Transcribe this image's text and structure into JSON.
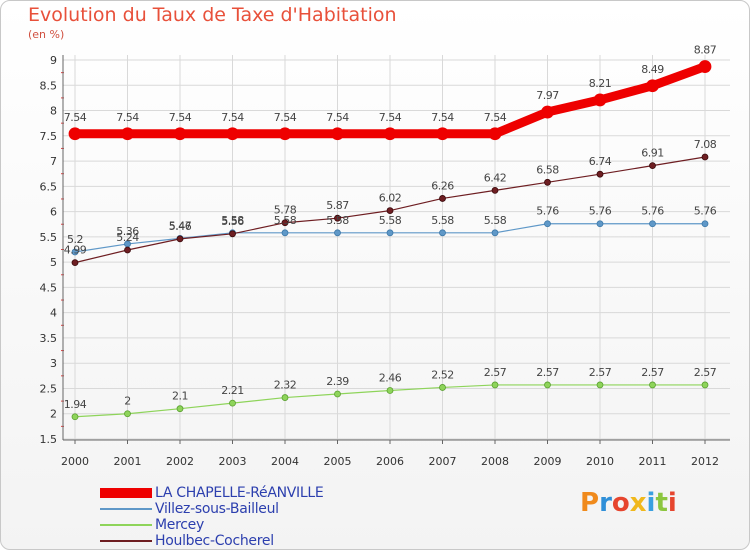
{
  "title": "Evolution du Taux de Taxe d'Habitation",
  "unit_label": "(en %)",
  "logo_text": "Proxiti",
  "chart_data": {
    "type": "line",
    "x": [
      "2000",
      "2001",
      "2002",
      "2003",
      "2004",
      "2005",
      "2006",
      "2007",
      "2008",
      "2009",
      "2010",
      "2011",
      "2012"
    ],
    "ylim": [
      1.5,
      9
    ],
    "yticks": [
      "1.5",
      "2",
      "2.5",
      "3",
      "3.5",
      "4",
      "4.5",
      "5",
      "5.5",
      "6",
      "6.5",
      "7",
      "7.5",
      "8",
      "8.5",
      "9"
    ],
    "grid": true,
    "legend_position": "bottom-left",
    "series": [
      {
        "name": "LA CHAPELLE-RéANVILLE",
        "color": "#ee0000",
        "values": [
          7.54,
          7.54,
          7.54,
          7.54,
          7.54,
          7.54,
          7.54,
          7.54,
          7.54,
          7.97,
          8.21,
          8.49,
          8.87
        ],
        "labels": [
          "7.54",
          "7.54",
          "7.54",
          "7.54",
          "7.54",
          "7.54",
          "7.54",
          "7.54",
          "7.54",
          "7.97",
          "8.21",
          "8.49",
          "8.87"
        ]
      },
      {
        "name": "Villez-sous-Bailleul",
        "color": "#5f98c8",
        "values": [
          5.2,
          5.36,
          5.47,
          5.58,
          5.58,
          5.58,
          5.58,
          5.58,
          5.58,
          5.76,
          5.76,
          5.76,
          5.76
        ],
        "labels": [
          "5.2",
          "5.36",
          "5.47",
          "5.58",
          "5.58",
          "5.58",
          "5.58",
          "5.58",
          "5.58",
          "5.76",
          "5.76",
          "5.76",
          "5.76"
        ]
      },
      {
        "name": "Mercey",
        "color": "#8ed45a",
        "values": [
          1.94,
          2,
          2.1,
          2.21,
          2.32,
          2.39,
          2.46,
          2.52,
          2.57,
          2.57,
          2.57,
          2.57,
          2.57
        ],
        "labels": [
          "1.94",
          "2",
          "2.1",
          "2.21",
          "2.32",
          "2.39",
          "2.46",
          "2.52",
          "2.57",
          "2.57",
          "2.57",
          "2.57",
          "2.57"
        ]
      },
      {
        "name": "Houlbec-Cocherel",
        "color": "#6e1e22",
        "values": [
          4.99,
          5.24,
          5.46,
          5.56,
          5.78,
          5.87,
          6.02,
          6.26,
          6.42,
          6.58,
          6.74,
          6.91,
          7.08
        ],
        "labels": [
          "4.99",
          "5.24",
          "5.46",
          "5.56",
          "5.78",
          "5.87",
          "6.02",
          "6.26",
          "6.42",
          "6.58",
          "6.74",
          "6.91",
          "7.08"
        ]
      }
    ]
  }
}
